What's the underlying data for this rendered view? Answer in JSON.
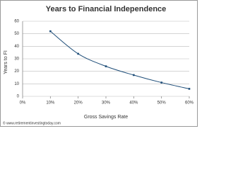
{
  "chart_data": {
    "type": "line",
    "title": "Years to Financial Independence",
    "x_label": "Gross Savings Rate",
    "y_label": "Years to FI",
    "watermark": "© www.retirementinvestingtoday.com",
    "x": [
      10,
      20,
      30,
      40,
      50,
      60
    ],
    "series": [
      {
        "name": "Years to FI",
        "color": "#1f4e79",
        "values": [
          52,
          34,
          24,
          17,
          11,
          6
        ]
      }
    ],
    "xlim": [
      0,
      60
    ],
    "xticks": [
      {
        "value": 0,
        "label": "0%"
      },
      {
        "value": 10,
        "label": "10%"
      },
      {
        "value": 20,
        "label": "20%"
      },
      {
        "value": 30,
        "label": "30%"
      },
      {
        "value": 40,
        "label": "40%"
      },
      {
        "value": 50,
        "label": "50%"
      },
      {
        "value": 60,
        "label": "60%"
      }
    ],
    "ylim": [
      0,
      60
    ],
    "yticks": [
      0,
      10,
      20,
      30,
      40,
      50,
      60
    ],
    "grid": true,
    "smooth": true,
    "markers": true
  }
}
